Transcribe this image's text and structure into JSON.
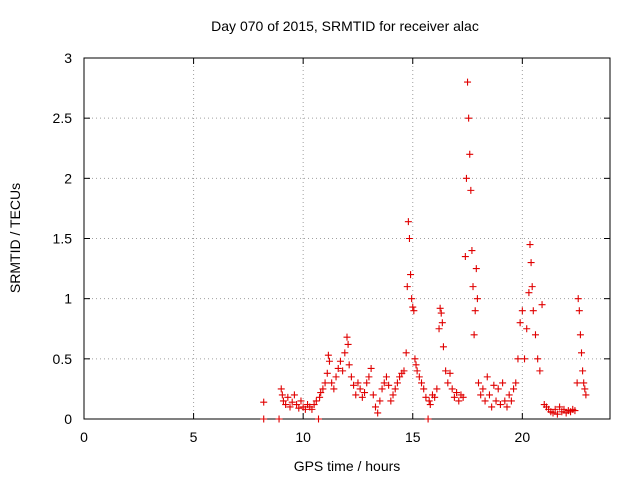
{
  "chart_data": {
    "type": "scatter",
    "title": "Day 070 of 2015, SRMTID for receiver alac",
    "xlabel": "GPS time / hours",
    "ylabel": "SRMTID / TECUs",
    "xlim": [
      0,
      24
    ],
    "ylim": [
      0,
      3
    ],
    "x_ticks": [
      0,
      5,
      10,
      15,
      20
    ],
    "y_ticks": [
      0,
      0.5,
      1,
      1.5,
      2,
      2.5,
      3
    ],
    "x_tick_labels": [
      "0",
      "5",
      "10",
      "15",
      "20"
    ],
    "y_tick_labels": [
      "0",
      "0.5",
      "1",
      "1.5",
      "2",
      "2.5",
      "3"
    ],
    "grid": true,
    "marker": "+",
    "color": "#e00000",
    "series": [
      {
        "name": "SRMTID",
        "points": [
          [
            8.2,
            0.0
          ],
          [
            8.2,
            0.14
          ],
          [
            8.9,
            0.0
          ],
          [
            9.0,
            0.25
          ],
          [
            9.05,
            0.2
          ],
          [
            9.1,
            0.15
          ],
          [
            9.2,
            0.12
          ],
          [
            9.3,
            0.18
          ],
          [
            9.4,
            0.1
          ],
          [
            9.5,
            0.14
          ],
          [
            9.6,
            0.2
          ],
          [
            9.7,
            0.12
          ],
          [
            9.8,
            0.09
          ],
          [
            9.9,
            0.15
          ],
          [
            10.0,
            0.1
          ],
          [
            10.1,
            0.08
          ],
          [
            10.2,
            0.12
          ],
          [
            10.3,
            0.1
          ],
          [
            10.4,
            0.08
          ],
          [
            10.5,
            0.12
          ],
          [
            10.6,
            0.15
          ],
          [
            10.7,
            0.0
          ],
          [
            10.75,
            0.18
          ],
          [
            10.8,
            0.22
          ],
          [
            10.9,
            0.25
          ],
          [
            11.0,
            0.3
          ],
          [
            11.1,
            0.38
          ],
          [
            11.15,
            0.53
          ],
          [
            11.2,
            0.48
          ],
          [
            11.3,
            0.3
          ],
          [
            11.4,
            0.25
          ],
          [
            11.5,
            0.35
          ],
          [
            11.6,
            0.42
          ],
          [
            11.7,
            0.48
          ],
          [
            11.8,
            0.4
          ],
          [
            11.9,
            0.55
          ],
          [
            12.0,
            0.68
          ],
          [
            12.05,
            0.62
          ],
          [
            12.1,
            0.45
          ],
          [
            12.2,
            0.35
          ],
          [
            12.3,
            0.28
          ],
          [
            12.4,
            0.2
          ],
          [
            12.5,
            0.3
          ],
          [
            12.6,
            0.25
          ],
          [
            12.7,
            0.18
          ],
          [
            12.8,
            0.22
          ],
          [
            12.9,
            0.3
          ],
          [
            13.0,
            0.35
          ],
          [
            13.1,
            0.42
          ],
          [
            13.2,
            0.2
          ],
          [
            13.3,
            0.1
          ],
          [
            13.4,
            0.05
          ],
          [
            13.5,
            0.15
          ],
          [
            13.6,
            0.25
          ],
          [
            13.7,
            0.3
          ],
          [
            13.8,
            0.35
          ],
          [
            13.9,
            0.28
          ],
          [
            14.0,
            0.15
          ],
          [
            14.1,
            0.2
          ],
          [
            14.2,
            0.25
          ],
          [
            14.3,
            0.3
          ],
          [
            14.4,
            0.35
          ],
          [
            14.5,
            0.38
          ],
          [
            14.6,
            0.4
          ],
          [
            14.7,
            0.55
          ],
          [
            14.75,
            1.1
          ],
          [
            14.8,
            1.64
          ],
          [
            14.85,
            1.5
          ],
          [
            14.9,
            1.2
          ],
          [
            14.95,
            1.0
          ],
          [
            15.0,
            0.93
          ],
          [
            15.05,
            0.9
          ],
          [
            15.1,
            0.5
          ],
          [
            15.15,
            0.45
          ],
          [
            15.2,
            0.4
          ],
          [
            15.3,
            0.35
          ],
          [
            15.4,
            0.3
          ],
          [
            15.5,
            0.25
          ],
          [
            15.6,
            0.18
          ],
          [
            15.7,
            0.0
          ],
          [
            15.75,
            0.15
          ],
          [
            15.8,
            0.12
          ],
          [
            15.9,
            0.2
          ],
          [
            16.0,
            0.18
          ],
          [
            16.1,
            0.25
          ],
          [
            16.2,
            0.75
          ],
          [
            16.25,
            0.92
          ],
          [
            16.3,
            0.88
          ],
          [
            16.35,
            0.8
          ],
          [
            16.4,
            0.6
          ],
          [
            16.5,
            0.4
          ],
          [
            16.6,
            0.3
          ],
          [
            16.7,
            0.38
          ],
          [
            16.8,
            0.25
          ],
          [
            16.9,
            0.18
          ],
          [
            17.0,
            0.22
          ],
          [
            17.1,
            0.15
          ],
          [
            17.2,
            0.2
          ],
          [
            17.3,
            0.18
          ],
          [
            17.4,
            1.35
          ],
          [
            17.45,
            2.0
          ],
          [
            17.5,
            2.8
          ],
          [
            17.55,
            2.5
          ],
          [
            17.6,
            2.2
          ],
          [
            17.65,
            1.9
          ],
          [
            17.7,
            1.4
          ],
          [
            17.75,
            1.1
          ],
          [
            17.8,
            0.7
          ],
          [
            17.85,
            0.9
          ],
          [
            17.9,
            1.25
          ],
          [
            17.95,
            1.0
          ],
          [
            18.0,
            0.3
          ],
          [
            18.1,
            0.2
          ],
          [
            18.2,
            0.25
          ],
          [
            18.3,
            0.15
          ],
          [
            18.4,
            0.35
          ],
          [
            18.5,
            0.2
          ],
          [
            18.6,
            0.1
          ],
          [
            18.7,
            0.28
          ],
          [
            18.8,
            0.15
          ],
          [
            18.9,
            0.25
          ],
          [
            19.0,
            0.12
          ],
          [
            19.1,
            0.3
          ],
          [
            19.2,
            0.15
          ],
          [
            19.3,
            0.1
          ],
          [
            19.4,
            0.2
          ],
          [
            19.5,
            0.15
          ],
          [
            19.6,
            0.25
          ],
          [
            19.7,
            0.3
          ],
          [
            19.8,
            0.5
          ],
          [
            19.9,
            0.8
          ],
          [
            20.0,
            0.9
          ],
          [
            20.1,
            0.5
          ],
          [
            20.2,
            0.75
          ],
          [
            20.3,
            1.05
          ],
          [
            20.35,
            1.45
          ],
          [
            20.4,
            1.3
          ],
          [
            20.45,
            1.1
          ],
          [
            20.5,
            0.9
          ],
          [
            20.6,
            0.7
          ],
          [
            20.7,
            0.5
          ],
          [
            20.8,
            0.4
          ],
          [
            20.9,
            0.95
          ],
          [
            21.0,
            0.12
          ],
          [
            21.1,
            0.1
          ],
          [
            21.2,
            0.08
          ],
          [
            21.3,
            0.06
          ],
          [
            21.4,
            0.05
          ],
          [
            21.5,
            0.08
          ],
          [
            21.6,
            0.04
          ],
          [
            21.7,
            0.1
          ],
          [
            21.8,
            0.06
          ],
          [
            21.9,
            0.08
          ],
          [
            22.0,
            0.05
          ],
          [
            22.1,
            0.07
          ],
          [
            22.2,
            0.06
          ],
          [
            22.3,
            0.08
          ],
          [
            22.4,
            0.07
          ],
          [
            22.5,
            0.3
          ],
          [
            22.55,
            1.0
          ],
          [
            22.6,
            0.9
          ],
          [
            22.65,
            0.7
          ],
          [
            22.7,
            0.55
          ],
          [
            22.75,
            0.4
          ],
          [
            22.8,
            0.3
          ],
          [
            22.85,
            0.25
          ],
          [
            22.9,
            0.2
          ]
        ]
      }
    ]
  }
}
